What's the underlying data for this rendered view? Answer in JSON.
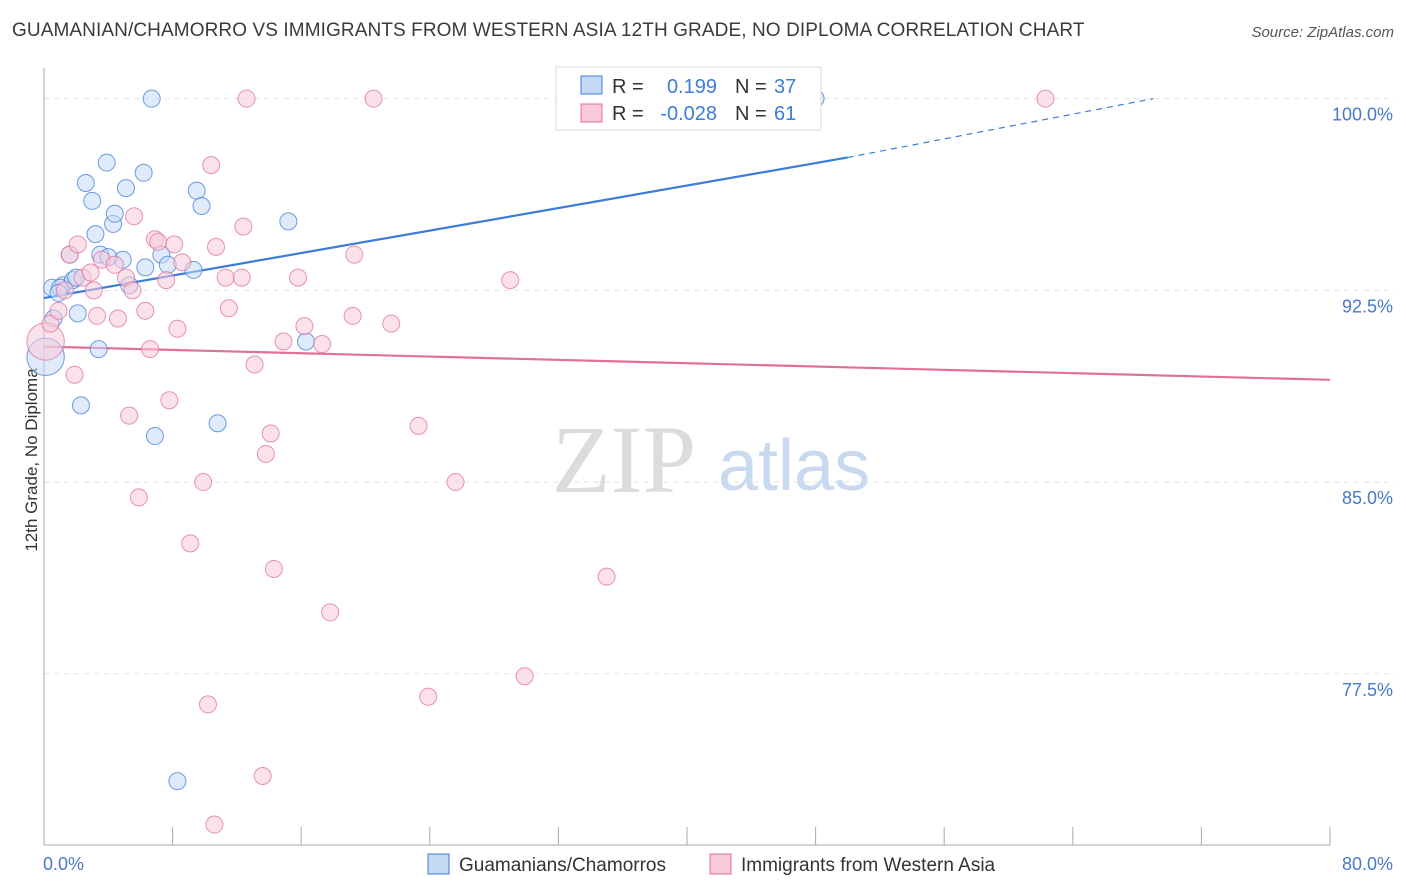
{
  "title": "GUAMANIAN/CHAMORRO VS IMMIGRANTS FROM WESTERN ASIA 12TH GRADE, NO DIPLOMA CORRELATION CHART",
  "source": "Source: ZipAtlas.com",
  "watermark": {
    "zip": "ZIP",
    "atlas": "atlas"
  },
  "colors": {
    "blue": "#3b7dd8",
    "blue_fill": "#c5d9f5",
    "pink": "#e0709a",
    "pink_fill": "#f8cad9",
    "axis_label": "#4a78c8",
    "grid": "#e2e2e2"
  },
  "stats_box": {
    "rows": [
      {
        "r_label": "R =",
        "r_value": "0.199",
        "n_label": "N =",
        "n_value": "37"
      },
      {
        "r_label": "R =",
        "r_value": "-0.028",
        "n_label": "N =",
        "n_value": "61"
      }
    ]
  },
  "legend": [
    {
      "label": "Guamanians/Chamorros"
    },
    {
      "label": "Immigrants from Western Asia"
    }
  ],
  "chart_data": {
    "type": "scatter",
    "title": "GUAMANIAN/CHAMORRO VS IMMIGRANTS FROM WESTERN ASIA 12TH GRADE, NO DIPLOMA CORRELATION CHART",
    "xlabel": "",
    "ylabel": "12th Grade, No Diploma",
    "xlim": [
      0,
      80
    ],
    "ylim": [
      70.8,
      101.2
    ],
    "x_tick_labels": [
      {
        "value": 0,
        "label": "0.0%"
      },
      {
        "value": 80,
        "label": "80.0%"
      }
    ],
    "y_tick_labels": [
      {
        "value": 100,
        "label": "100.0%"
      },
      {
        "value": 92.5,
        "label": "92.5%"
      },
      {
        "value": 85,
        "label": "85.0%"
      },
      {
        "value": 77.5,
        "label": "77.5%"
      }
    ],
    "x_minor_ticks": [
      0,
      8,
      16,
      24,
      32,
      40,
      48,
      56,
      64,
      72,
      80
    ],
    "grid": true,
    "legend_position": "bottom",
    "series": [
      {
        "name": "Guamanians/Chamorros",
        "color": "blue",
        "points": [
          [
            0.1,
            89.9,
            2.2
          ],
          [
            0.5,
            92.6,
            1
          ],
          [
            0.6,
            91.4,
            1
          ],
          [
            1.2,
            92.7,
            1
          ],
          [
            1.6,
            93.9,
            1
          ],
          [
            1.8,
            92.9,
            1
          ],
          [
            2.1,
            91.6,
            1
          ],
          [
            2.3,
            88.0,
            1
          ],
          [
            2.6,
            96.7,
            1
          ],
          [
            3.0,
            96.0,
            1
          ],
          [
            3.2,
            94.7,
            1
          ],
          [
            3.4,
            90.2,
            1
          ],
          [
            3.5,
            93.9,
            1
          ],
          [
            3.9,
            97.5,
            1
          ],
          [
            4.3,
            95.1,
            1
          ],
          [
            4.4,
            95.5,
            1
          ],
          [
            4.9,
            93.7,
            1
          ],
          [
            5.1,
            96.5,
            1
          ],
          [
            5.3,
            92.7,
            1
          ],
          [
            6.2,
            97.1,
            1
          ],
          [
            6.3,
            93.4,
            1
          ],
          [
            6.7,
            100.0,
            1
          ],
          [
            6.9,
            86.8,
            1
          ],
          [
            7.3,
            93.9,
            1
          ],
          [
            7.7,
            93.5,
            1
          ],
          [
            8.3,
            73.3,
            1
          ],
          [
            9.3,
            93.3,
            1
          ],
          [
            9.5,
            96.4,
            1
          ],
          [
            9.8,
            95.8,
            1
          ],
          [
            10.8,
            87.3,
            1
          ],
          [
            15.2,
            95.2,
            1
          ],
          [
            16.3,
            90.5,
            1
          ],
          [
            48.0,
            100.0,
            1
          ],
          [
            1.0,
            92.6,
            1
          ],
          [
            2.0,
            93.0,
            1
          ],
          [
            0.9,
            92.4,
            1
          ],
          [
            4.0,
            93.8,
            1
          ]
        ],
        "trend": {
          "x0": 0,
          "y0": 92.2,
          "x1": 50,
          "y1": 97.7,
          "dash_to_x": 69,
          "dash_to_y": 100.0
        }
      },
      {
        "name": "Immigrants from Western Asia",
        "color": "pink",
        "points": [
          [
            0.1,
            90.5,
            2.2
          ],
          [
            0.4,
            91.2,
            1
          ],
          [
            0.9,
            91.7,
            1
          ],
          [
            1.3,
            92.5,
            1
          ],
          [
            1.6,
            93.9,
            1
          ],
          [
            1.9,
            89.2,
            1
          ],
          [
            2.1,
            94.3,
            1
          ],
          [
            2.4,
            93.0,
            1
          ],
          [
            2.9,
            93.2,
            1
          ],
          [
            3.1,
            92.5,
            1
          ],
          [
            3.3,
            91.5,
            1
          ],
          [
            3.6,
            93.7,
            1
          ],
          [
            4.4,
            93.5,
            1
          ],
          [
            4.6,
            91.4,
            1
          ],
          [
            5.1,
            93.0,
            1
          ],
          [
            5.3,
            87.6,
            1
          ],
          [
            5.5,
            92.5,
            1
          ],
          [
            5.6,
            95.4,
            1
          ],
          [
            5.9,
            84.4,
            1
          ],
          [
            6.3,
            91.7,
            1
          ],
          [
            6.6,
            90.2,
            1
          ],
          [
            6.9,
            94.5,
            1
          ],
          [
            7.1,
            94.4,
            1
          ],
          [
            7.6,
            92.9,
            1
          ],
          [
            7.8,
            88.2,
            1
          ],
          [
            8.1,
            94.3,
            1
          ],
          [
            8.3,
            91.0,
            1
          ],
          [
            8.6,
            93.6,
            1
          ],
          [
            9.1,
            82.6,
            1
          ],
          [
            9.9,
            85.0,
            1
          ],
          [
            10.2,
            76.3,
            1
          ],
          [
            10.4,
            97.4,
            1
          ],
          [
            10.7,
            94.2,
            1
          ],
          [
            10.6,
            71.6,
            1
          ],
          [
            11.3,
            93.0,
            1
          ],
          [
            11.5,
            91.8,
            1
          ],
          [
            12.3,
            93.0,
            1
          ],
          [
            12.4,
            95.0,
            1
          ],
          [
            12.6,
            100.0,
            1
          ],
          [
            13.1,
            89.6,
            1
          ],
          [
            13.6,
            73.5,
            1
          ],
          [
            13.8,
            86.1,
            1
          ],
          [
            14.1,
            86.9,
            1
          ],
          [
            14.3,
            81.6,
            1
          ],
          [
            14.9,
            90.5,
            1
          ],
          [
            15.8,
            93.0,
            1
          ],
          [
            16.2,
            91.1,
            1
          ],
          [
            17.3,
            90.4,
            1
          ],
          [
            17.8,
            79.9,
            1
          ],
          [
            19.2,
            91.5,
            1
          ],
          [
            19.3,
            93.9,
            1
          ],
          [
            20.5,
            100.0,
            1
          ],
          [
            21.6,
            91.2,
            1
          ],
          [
            23.3,
            87.2,
            1
          ],
          [
            23.9,
            76.6,
            1
          ],
          [
            25.6,
            85.0,
            1
          ],
          [
            29.0,
            92.9,
            1
          ],
          [
            29.9,
            77.4,
            1
          ],
          [
            35.0,
            81.3,
            1
          ],
          [
            43.5,
            100.0,
            1
          ],
          [
            62.3,
            100.0,
            1
          ]
        ],
        "trend": {
          "x0": 0,
          "y0": 90.3,
          "x1": 80,
          "y1": 89.0
        }
      }
    ]
  }
}
